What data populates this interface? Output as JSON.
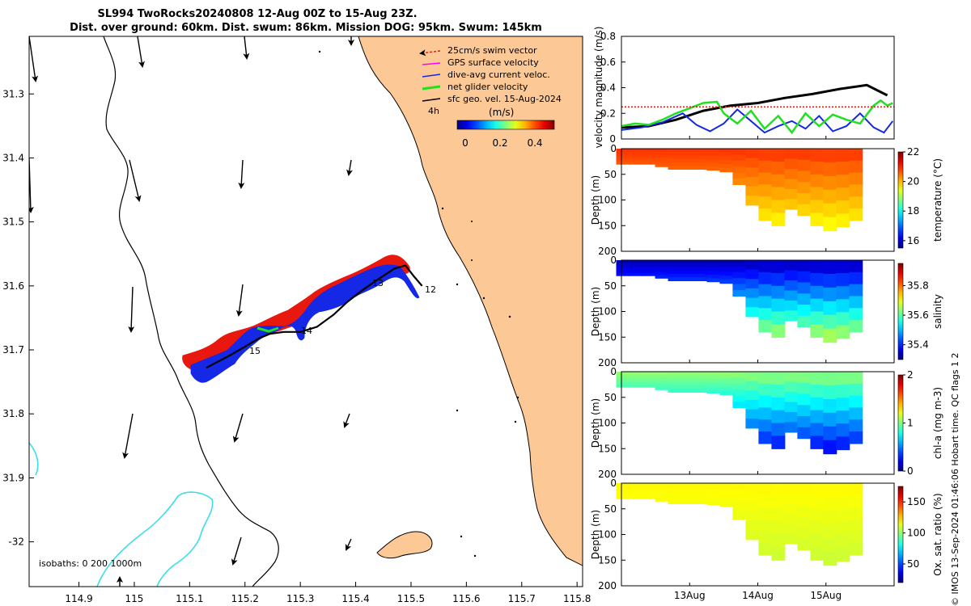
{
  "title": {
    "line1": "SL994 TwoRocks20240808 12-Aug 00Z to 15-Aug 23Z.",
    "line2": "Dist. over ground: 60km. Dist. swum: 86km. Mission DOG: 95km. Swum: 145km"
  },
  "credit": "© IMOS 13-Sep-2024 01:46:06 Hobart time. QC flags 1  2",
  "colors": {
    "land": "#fbc896",
    "swim": "#e8180e",
    "gps": "#ff00ff",
    "dive": "#1428e6",
    "net": "#20e020",
    "geo": "#000000",
    "isobath": "#38e0e8"
  },
  "map": {
    "legend": [
      {
        "label": "25cm/s swim vector",
        "color": "#e8180e"
      },
      {
        "label": "GPS surface velocity",
        "color": "#ff00ff"
      },
      {
        "label": "dive-avg current veloc.",
        "color": "#1428e6"
      },
      {
        "label": "net glider velocity",
        "color": "#20e020"
      },
      {
        "label": "sfc geo. vel. 15-Aug-2024",
        "color": "#000000"
      }
    ],
    "colorbar": {
      "label": "(m/s)",
      "ticks": [
        "0",
        "0.2",
        "0.4"
      ],
      "vmin": 0,
      "vmax": 0.5
    },
    "age_label": "4h",
    "isobaths_label": "isobaths: 0   200  1000m",
    "x_ticks": [
      114.9,
      115,
      115.1,
      115.2,
      115.3,
      115.4,
      115.5,
      115.6,
      115.7,
      115.8
    ],
    "x_tick_labels": [
      "114.9",
      "115",
      "115.1",
      "115.2",
      "115.3",
      "115.4",
      "115.5",
      "115.6",
      "115.7",
      "115.8"
    ],
    "y_ticks": [
      -31.3,
      -31.4,
      -31.5,
      -31.6,
      -31.7,
      -31.8,
      -31.9,
      -32.0
    ],
    "y_tick_labels": [
      "31.3",
      "31.4",
      "31.5",
      "31.6",
      "31.7",
      "31.8",
      "31.9",
      "-32"
    ],
    "xlim": [
      114.81,
      115.81
    ],
    "ylim": [
      -32.07,
      -31.21
    ],
    "day_labels": [
      "12",
      "13",
      "14",
      "15"
    ],
    "track": [
      [
        115.13,
        -31.728
      ],
      [
        115.17,
        -31.71
      ],
      [
        115.2,
        -31.695
      ],
      [
        115.225,
        -31.682
      ],
      [
        115.245,
        -31.675
      ],
      [
        115.27,
        -31.672
      ],
      [
        115.3,
        -31.672
      ],
      [
        115.33,
        -31.664
      ],
      [
        115.36,
        -31.645
      ],
      [
        115.385,
        -31.625
      ],
      [
        115.41,
        -31.608
      ],
      [
        115.44,
        -31.59
      ],
      [
        115.47,
        -31.573
      ],
      [
        115.49,
        -31.568
      ],
      [
        115.505,
        -31.585
      ],
      [
        115.52,
        -31.6
      ]
    ]
  },
  "chart_data": [
    {
      "type": "line",
      "panel": "velocity",
      "ylabel": "velocity magnitude (m/s)",
      "ylim": [
        0,
        0.8
      ],
      "y_ticks": [
        "0",
        "0.2",
        "0.4",
        "0.6",
        "0.8"
      ],
      "x_range_days": [
        12,
        16
      ],
      "series": [
        {
          "name": "sfc geo. vel.",
          "color": "#000000",
          "x": [
            12.0,
            12.4,
            12.8,
            13.2,
            13.6,
            14.0,
            14.4,
            14.8,
            15.2,
            15.6,
            15.9
          ],
          "values": [
            0.09,
            0.1,
            0.15,
            0.22,
            0.26,
            0.28,
            0.32,
            0.35,
            0.39,
            0.42,
            0.34
          ]
        },
        {
          "name": "dive-avg current veloc.",
          "color": "#1428e6",
          "x": [
            12.0,
            12.3,
            12.6,
            12.9,
            13.1,
            13.3,
            13.5,
            13.7,
            13.9,
            14.1,
            14.3,
            14.5,
            14.7,
            14.9,
            15.1,
            15.3,
            15.5,
            15.7,
            15.85,
            15.98
          ],
          "values": [
            0.07,
            0.09,
            0.13,
            0.2,
            0.11,
            0.06,
            0.12,
            0.23,
            0.14,
            0.05,
            0.1,
            0.14,
            0.08,
            0.18,
            0.06,
            0.1,
            0.2,
            0.09,
            0.05,
            0.14
          ]
        },
        {
          "name": "net glider velocity",
          "color": "#20e020",
          "x": [
            12.0,
            12.2,
            12.4,
            12.6,
            12.8,
            13.0,
            13.2,
            13.4,
            13.5,
            13.7,
            13.9,
            14.1,
            14.3,
            14.5,
            14.7,
            14.9,
            15.1,
            15.3,
            15.5,
            15.7,
            15.8,
            15.9,
            15.98
          ],
          "values": [
            0.1,
            0.12,
            0.11,
            0.15,
            0.2,
            0.24,
            0.28,
            0.29,
            0.2,
            0.12,
            0.22,
            0.08,
            0.18,
            0.05,
            0.2,
            0.1,
            0.19,
            0.15,
            0.12,
            0.26,
            0.3,
            0.26,
            0.28
          ]
        },
        {
          "name": "25cm/s swim vector",
          "color": "#e8180e",
          "style": "dotted",
          "x": [
            12.0,
            16.0
          ],
          "values": [
            0.25,
            0.25
          ]
        }
      ]
    },
    {
      "type": "heatmap",
      "panel": "temperature",
      "variable": "temperature (°C)",
      "ylabel": "Depth (m)",
      "ylim": [
        200,
        0
      ],
      "y_ticks": [
        "0",
        "50",
        "100",
        "150",
        "200"
      ],
      "colorbar_ticks": [
        "16",
        "18",
        "20",
        "22"
      ],
      "cmin": 15.5,
      "cmax": 22,
      "profile_depth_max": [
        30,
        30,
        30,
        35,
        40,
        40,
        40,
        42,
        45,
        70,
        110,
        140,
        150,
        118,
        130,
        150,
        160,
        152,
        140
      ],
      "surface_value": 20.9,
      "deep_value": 19.7
    },
    {
      "type": "heatmap",
      "panel": "salinity",
      "variable": "salinity",
      "ylabel": "Depth (m)",
      "ylim": [
        200,
        0
      ],
      "y_ticks": [
        "0",
        "50",
        "100",
        "150",
        "200"
      ],
      "colorbar_ticks": [
        "35.4",
        "35.6",
        "35.8"
      ],
      "cmin": 35.3,
      "cmax": 35.95,
      "profile_depth_max": [
        30,
        30,
        30,
        35,
        40,
        40,
        40,
        42,
        45,
        70,
        110,
        140,
        150,
        118,
        130,
        150,
        160,
        152,
        140
      ],
      "surface_value": 35.33,
      "deep_value": 35.62
    },
    {
      "type": "heatmap",
      "panel": "chlorophyll",
      "variable": "chl-a (mg m-3)",
      "ylabel": "Depth (m)",
      "ylim": [
        200,
        0
      ],
      "y_ticks": [
        "0",
        "50",
        "100",
        "150",
        "200"
      ],
      "colorbar_ticks": [
        "0",
        "1",
        "2"
      ],
      "cmin": 0,
      "cmax": 2,
      "profile_depth_max": [
        30,
        30,
        30,
        35,
        40,
        40,
        40,
        42,
        45,
        70,
        110,
        140,
        150,
        118,
        130,
        150,
        160,
        152,
        140
      ],
      "surface_value": 1.05,
      "deep_value": 0.35
    },
    {
      "type": "heatmap",
      "panel": "oxygen",
      "variable": "Ox. sat. ratio (%)",
      "ylabel": "Depth (m)",
      "ylim": [
        200,
        0
      ],
      "y_ticks": [
        "0",
        "50",
        "100",
        "150",
        "200"
      ],
      "colorbar_ticks": [
        "50",
        "100",
        "150"
      ],
      "cmin": 20,
      "cmax": 175,
      "profile_depth_max": [
        30,
        30,
        30,
        35,
        40,
        40,
        40,
        42,
        45,
        70,
        110,
        140,
        150,
        118,
        130,
        150,
        160,
        152,
        140
      ],
      "surface_value": 118,
      "deep_value": 110,
      "x_tick_labels": [
        "13Aug",
        "14Aug",
        "15Aug"
      ],
      "x_ticks_days": [
        13,
        14,
        15
      ]
    }
  ]
}
